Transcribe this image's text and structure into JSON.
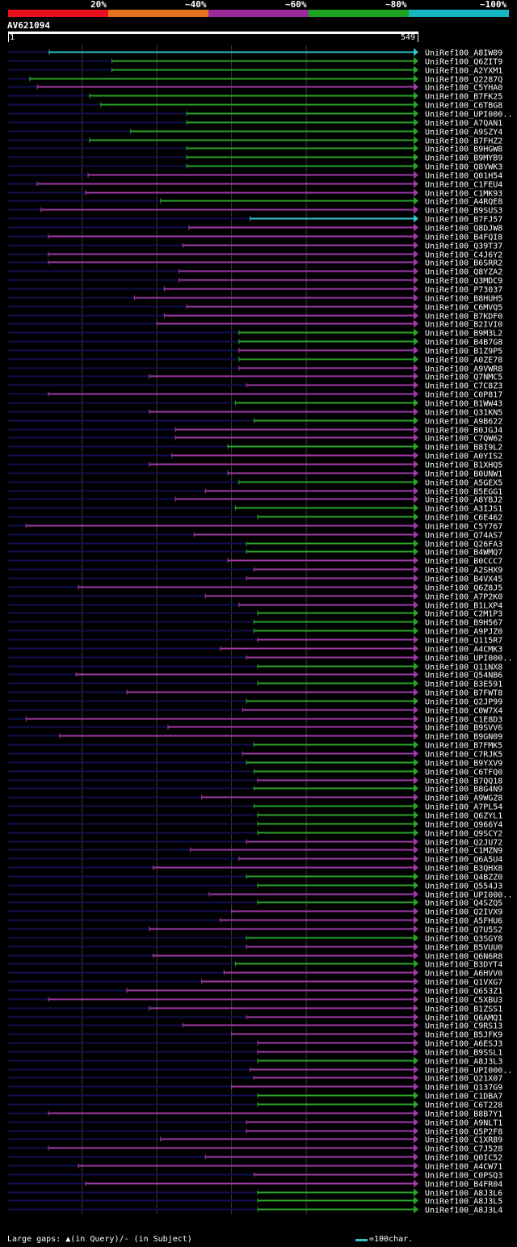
{
  "identity_scale": {
    "labels": [
      "20%",
      "~40%",
      "~60%",
      "~80%",
      "~100%"
    ],
    "colors": [
      "#e8101e",
      "#e8731e",
      "#9b2899",
      "#1da322",
      "#15b7c1"
    ]
  },
  "query": {
    "name": "AV621094",
    "start_label": "1",
    "end_label": "549",
    "length": 549
  },
  "colors": {
    "identity_100": "#33c4cc",
    "identity_80": "#2aa52a",
    "identity_60": "#a03aa8",
    "background_line": "#101050",
    "gridline": "#3a3a3a"
  },
  "hits": [
    {
      "label": "UniRef100_A8IW09",
      "start": 56,
      "end": 549,
      "color": "cyan"
    },
    {
      "label": "UniRef100_Q6ZIT9",
      "start": 140,
      "end": 549,
      "color": "green"
    },
    {
      "label": "UniRef100_A2YXM1",
      "start": 140,
      "end": 549,
      "color": "green"
    },
    {
      "label": "UniRef100_Q2287Q",
      "start": 30,
      "end": 549,
      "color": "green"
    },
    {
      "label": "UniRef100_C5YHA0",
      "start": 40,
      "end": 549,
      "color": "magenta"
    },
    {
      "label": "UniRef100_B7FK25",
      "start": 110,
      "end": 549,
      "color": "green"
    },
    {
      "label": "UniRef100_C6TBG8",
      "start": 125,
      "end": 549,
      "color": "green"
    },
    {
      "label": "UniRef100_UPI000..",
      "start": 240,
      "end": 549,
      "color": "green"
    },
    {
      "label": "UniRef100_A7QAN1",
      "start": 240,
      "end": 549,
      "color": "green"
    },
    {
      "label": "UniRef100_A9SZY4",
      "start": 165,
      "end": 549,
      "color": "green"
    },
    {
      "label": "UniRef100_B7FHZ2",
      "start": 110,
      "end": 549,
      "color": "green"
    },
    {
      "label": "UniRef100_B9HGW8",
      "start": 240,
      "end": 549,
      "color": "green"
    },
    {
      "label": "UniRef100_B9MYB9",
      "start": 240,
      "end": 549,
      "color": "green"
    },
    {
      "label": "UniRef100_Q8VWK3",
      "start": 240,
      "end": 549,
      "color": "green"
    },
    {
      "label": "UniRef100_Q01H54",
      "start": 108,
      "end": 549,
      "color": "magenta"
    },
    {
      "label": "UniRef100_C1FEU4",
      "start": 40,
      "end": 549,
      "color": "magenta"
    },
    {
      "label": "UniRef100_C1MK93",
      "start": 105,
      "end": 549,
      "color": "magenta"
    },
    {
      "label": "UniRef100_A4RQE8",
      "start": 205,
      "end": 549,
      "color": "green"
    },
    {
      "label": "UniRef100_B9SUS3",
      "start": 45,
      "end": 549,
      "color": "magenta"
    },
    {
      "label": "UniRef100_B7FJ57",
      "start": 325,
      "end": 549,
      "color": "cyan"
    },
    {
      "label": "UniRef100_Q8DJW8",
      "start": 243,
      "end": 549,
      "color": "magenta"
    },
    {
      "label": "UniRef100_B4FQI8",
      "start": 55,
      "end": 549,
      "color": "magenta"
    },
    {
      "label": "UniRef100_Q39T37",
      "start": 235,
      "end": 549,
      "color": "magenta"
    },
    {
      "label": "UniRef100_C4J6Y2",
      "start": 55,
      "end": 549,
      "color": "magenta"
    },
    {
      "label": "UniRef100_B6SRR2",
      "start": 55,
      "end": 549,
      "color": "magenta"
    },
    {
      "label": "UniRef100_Q8YZA2",
      "start": 230,
      "end": 549,
      "color": "magenta"
    },
    {
      "label": "UniRef100_Q3MDC9",
      "start": 230,
      "end": 549,
      "color": "magenta"
    },
    {
      "label": "UniRef100_P73037",
      "start": 210,
      "end": 549,
      "color": "magenta"
    },
    {
      "label": "UniRef100_B8HUH5",
      "start": 170,
      "end": 549,
      "color": "magenta"
    },
    {
      "label": "UniRef100_C6MVQ5",
      "start": 240,
      "end": 549,
      "color": "magenta"
    },
    {
      "label": "UniRef100_B7KDF0",
      "start": 210,
      "end": 549,
      "color": "magenta"
    },
    {
      "label": "UniRef100_B2IVI0",
      "start": 200,
      "end": 549,
      "color": "magenta"
    },
    {
      "label": "UniRef100_B9M3L2",
      "start": 310,
      "end": 549,
      "color": "green"
    },
    {
      "label": "UniRef100_B4B7G8",
      "start": 310,
      "end": 549,
      "color": "green"
    },
    {
      "label": "UniRef100_B1Z9P5",
      "start": 310,
      "end": 549,
      "color": "magenta"
    },
    {
      "label": "UniRef100_A0ZE78",
      "start": 310,
      "end": 549,
      "color": "green"
    },
    {
      "label": "UniRef100_A9VWR8",
      "start": 310,
      "end": 549,
      "color": "magenta"
    },
    {
      "label": "UniRef100_Q7NMC5",
      "start": 190,
      "end": 549,
      "color": "magenta"
    },
    {
      "label": "UniRef100_C7C8Z3",
      "start": 320,
      "end": 549,
      "color": "magenta"
    },
    {
      "label": "UniRef100_C0P817",
      "start": 55,
      "end": 549,
      "color": "magenta"
    },
    {
      "label": "UniRef100_B1WW43",
      "start": 305,
      "end": 549,
      "color": "green"
    },
    {
      "label": "UniRef100_Q31KN5",
      "start": 190,
      "end": 549,
      "color": "magenta"
    },
    {
      "label": "UniRef100_A9B622",
      "start": 330,
      "end": 549,
      "color": "green"
    },
    {
      "label": "UniRef100_B0JGJ4",
      "start": 225,
      "end": 549,
      "color": "magenta"
    },
    {
      "label": "UniRef100_C7QW62",
      "start": 225,
      "end": 549,
      "color": "magenta"
    },
    {
      "label": "UniRef100_B8I9L2",
      "start": 295,
      "end": 549,
      "color": "green"
    },
    {
      "label": "UniRef100_A0YIS2",
      "start": 220,
      "end": 549,
      "color": "magenta"
    },
    {
      "label": "UniRef100_B1XHQ5",
      "start": 190,
      "end": 549,
      "color": "magenta"
    },
    {
      "label": "UniRef100_B0UNW1",
      "start": 295,
      "end": 549,
      "color": "magenta"
    },
    {
      "label": "UniRef100_A5GEX5",
      "start": 310,
      "end": 549,
      "color": "green"
    },
    {
      "label": "UniRef100_B5EGG1",
      "start": 265,
      "end": 549,
      "color": "magenta"
    },
    {
      "label": "UniRef100_A8YBJ2",
      "start": 225,
      "end": 549,
      "color": "magenta"
    },
    {
      "label": "UniRef100_A3IJS1",
      "start": 305,
      "end": 549,
      "color": "green"
    },
    {
      "label": "UniRef100_C6E462",
      "start": 335,
      "end": 549,
      "color": "green"
    },
    {
      "label": "UniRef100_C5Y767",
      "start": 25,
      "end": 549,
      "color": "magenta"
    },
    {
      "label": "UniRef100_Q74AS7",
      "start": 250,
      "end": 549,
      "color": "magenta"
    },
    {
      "label": "UniRef100_Q26FA3",
      "start": 320,
      "end": 549,
      "color": "green"
    },
    {
      "label": "UniRef100_B4WMQ7",
      "start": 320,
      "end": 549,
      "color": "green"
    },
    {
      "label": "UniRef100_B0CCC7",
      "start": 295,
      "end": 549,
      "color": "magenta"
    },
    {
      "label": "UniRef100_A2SHX9",
      "start": 330,
      "end": 549,
      "color": "magenta"
    },
    {
      "label": "UniRef100_B4VX45",
      "start": 320,
      "end": 549,
      "color": "magenta"
    },
    {
      "label": "UniRef100_Q6Z8J5",
      "start": 95,
      "end": 549,
      "color": "magenta"
    },
    {
      "label": "UniRef100_A7P2K0",
      "start": 265,
      "end": 549,
      "color": "magenta"
    },
    {
      "label": "UniRef100_B1LXP4",
      "start": 310,
      "end": 549,
      "color": "magenta"
    },
    {
      "label": "UniRef100_C2M1P3",
      "start": 335,
      "end": 549,
      "color": "green"
    },
    {
      "label": "UniRef100_B9H567",
      "start": 330,
      "end": 549,
      "color": "green"
    },
    {
      "label": "UniRef100_A9PJZ0",
      "start": 330,
      "end": 549,
      "color": "green"
    },
    {
      "label": "UniRef100_Q115R7",
      "start": 335,
      "end": 549,
      "color": "magenta"
    },
    {
      "label": "UniRef100_A4CMK3",
      "start": 285,
      "end": 549,
      "color": "magenta"
    },
    {
      "label": "UniRef100_UPI000..",
      "start": 320,
      "end": 549,
      "color": "magenta"
    },
    {
      "label": "UniRef100_Q11NX8",
      "start": 335,
      "end": 549,
      "color": "green"
    },
    {
      "label": "UniRef100_Q54NB6",
      "start": 92,
      "end": 549,
      "color": "magenta"
    },
    {
      "label": "UniRef100_B3E591",
      "start": 335,
      "end": 549,
      "color": "green"
    },
    {
      "label": "UniRef100_B7FWT8",
      "start": 160,
      "end": 549,
      "color": "magenta"
    },
    {
      "label": "UniRef100_Q2JP99",
      "start": 320,
      "end": 549,
      "color": "green"
    },
    {
      "label": "UniRef100_C0W7X4",
      "start": 315,
      "end": 549,
      "color": "magenta"
    },
    {
      "label": "UniRef100_C1E8D3",
      "start": 25,
      "end": 549,
      "color": "magenta"
    },
    {
      "label": "UniRef100_B9SVV6",
      "start": 215,
      "end": 549,
      "color": "magenta"
    },
    {
      "label": "UniRef100_B9GN09",
      "start": 70,
      "end": 549,
      "color": "magenta"
    },
    {
      "label": "UniRef100_B7FMK5",
      "start": 330,
      "end": 549,
      "color": "green"
    },
    {
      "label": "UniRef100_C7RJK5",
      "start": 315,
      "end": 549,
      "color": "magenta"
    },
    {
      "label": "UniRef100_B9YXV9",
      "start": 320,
      "end": 549,
      "color": "green"
    },
    {
      "label": "UniRef100_C6TFQ0",
      "start": 330,
      "end": 549,
      "color": "green"
    },
    {
      "label": "UniRef100_B7QQ18",
      "start": 335,
      "end": 549,
      "color": "magenta"
    },
    {
      "label": "UniRef100_B8G4N9",
      "start": 330,
      "end": 549,
      "color": "green"
    },
    {
      "label": "UniRef100_A9WGZ8",
      "start": 260,
      "end": 549,
      "color": "magenta"
    },
    {
      "label": "UniRef100_A7PL54",
      "start": 330,
      "end": 549,
      "color": "green"
    },
    {
      "label": "UniRef100_Q6ZYL1",
      "start": 335,
      "end": 549,
      "color": "green"
    },
    {
      "label": "UniRef100_Q966Y4",
      "start": 335,
      "end": 549,
      "color": "green"
    },
    {
      "label": "UniRef100_Q9SCY2",
      "start": 335,
      "end": 549,
      "color": "green"
    },
    {
      "label": "UniRef100_Q2JU72",
      "start": 320,
      "end": 549,
      "color": "magenta"
    },
    {
      "label": "UniRef100_C1MZN9",
      "start": 245,
      "end": 549,
      "color": "magenta"
    },
    {
      "label": "UniRef100_Q6A5U4",
      "start": 310,
      "end": 549,
      "color": "magenta"
    },
    {
      "label": "UniRef100_B3QHX8",
      "start": 195,
      "end": 549,
      "color": "magenta"
    },
    {
      "label": "UniRef100_Q4BZZ0",
      "start": 320,
      "end": 549,
      "color": "green"
    },
    {
      "label": "UniRef100_Q554J3",
      "start": 335,
      "end": 549,
      "color": "green"
    },
    {
      "label": "UniRef100_UPI000..",
      "start": 270,
      "end": 549,
      "color": "magenta"
    },
    {
      "label": "UniRef100_Q4SZQ5",
      "start": 335,
      "end": 549,
      "color": "green"
    },
    {
      "label": "UniRef100_Q2IVX9",
      "start": 300,
      "end": 549,
      "color": "magenta"
    },
    {
      "label": "UniRef100_A5FHU6",
      "start": 285,
      "end": 549,
      "color": "magenta"
    },
    {
      "label": "UniRef100_Q7U5S2",
      "start": 190,
      "end": 549,
      "color": "magenta"
    },
    {
      "label": "UniRef100_Q3SGY8",
      "start": 320,
      "end": 549,
      "color": "green"
    },
    {
      "label": "UniRef100_B5VUU0",
      "start": 320,
      "end": 549,
      "color": "magenta"
    },
    {
      "label": "UniRef100_Q6N6R8",
      "start": 195,
      "end": 549,
      "color": "magenta"
    },
    {
      "label": "UniRef100_B3DYT4",
      "start": 305,
      "end": 549,
      "color": "green"
    },
    {
      "label": "UniRef100_A6HVV0",
      "start": 290,
      "end": 549,
      "color": "magenta"
    },
    {
      "label": "UniRef100_Q1VXG7",
      "start": 260,
      "end": 549,
      "color": "magenta"
    },
    {
      "label": "UniRef100_Q653Z1",
      "start": 160,
      "end": 549,
      "color": "magenta"
    },
    {
      "label": "UniRef100_C5XBU3",
      "start": 55,
      "end": 549,
      "color": "magenta"
    },
    {
      "label": "UniRef100_B1ZSS1",
      "start": 190,
      "end": 549,
      "color": "magenta"
    },
    {
      "label": "UniRef100_Q6AMQ1",
      "start": 320,
      "end": 549,
      "color": "magenta"
    },
    {
      "label": "UniRef100_C9RS13",
      "start": 235,
      "end": 549,
      "color": "magenta"
    },
    {
      "label": "UniRef100_B5JFK9",
      "start": 300,
      "end": 549,
      "color": "magenta"
    },
    {
      "label": "UniRef100_A6ESJ3",
      "start": 335,
      "end": 549,
      "color": "magenta"
    },
    {
      "label": "UniRef100_B9SSL1",
      "start": 335,
      "end": 549,
      "color": "magenta"
    },
    {
      "label": "UniRef100_A8J3L3",
      "start": 335,
      "end": 549,
      "color": "green"
    },
    {
      "label": "UniRef100_UPI000..",
      "start": 325,
      "end": 549,
      "color": "magenta"
    },
    {
      "label": "UniRef100_Q21X07",
      "start": 330,
      "end": 549,
      "color": "magenta"
    },
    {
      "label": "UniRef100_Q137G9",
      "start": 300,
      "end": 549,
      "color": "magenta"
    },
    {
      "label": "UniRef100_C1DBA7",
      "start": 335,
      "end": 549,
      "color": "green"
    },
    {
      "label": "UniRef100_C6T228",
      "start": 335,
      "end": 549,
      "color": "green"
    },
    {
      "label": "UniRef100_B8B7Y1",
      "start": 55,
      "end": 549,
      "color": "magenta"
    },
    {
      "label": "UniRef100_A9NLT1",
      "start": 320,
      "end": 549,
      "color": "magenta"
    },
    {
      "label": "UniRef100_Q5P2F8",
      "start": 320,
      "end": 549,
      "color": "magenta"
    },
    {
      "label": "UniRef100_C1XR89",
      "start": 205,
      "end": 549,
      "color": "magenta"
    },
    {
      "label": "UniRef100_C7J528",
      "start": 55,
      "end": 549,
      "color": "magenta"
    },
    {
      "label": "UniRef100_Q0IC52",
      "start": 265,
      "end": 549,
      "color": "magenta"
    },
    {
      "label": "UniRef100_A4CW71",
      "start": 95,
      "end": 549,
      "color": "magenta"
    },
    {
      "label": "UniRef100_C0PSQ3",
      "start": 330,
      "end": 549,
      "color": "magenta"
    },
    {
      "label": "UniRef100_B4FR04",
      "start": 105,
      "end": 549,
      "color": "magenta"
    },
    {
      "label": "UniRef100_A8J3L6",
      "start": 335,
      "end": 549,
      "color": "green"
    },
    {
      "label": "UniRef100_A8J3L5",
      "start": 335,
      "end": 549,
      "color": "green"
    },
    {
      "label": "UniRef100_A8J3L4",
      "start": 335,
      "end": 549,
      "color": "green"
    }
  ],
  "legend": {
    "large_gaps": "Large gaps: ▲(in Query)/- (in Subject)",
    "scale_text": "=100char."
  }
}
